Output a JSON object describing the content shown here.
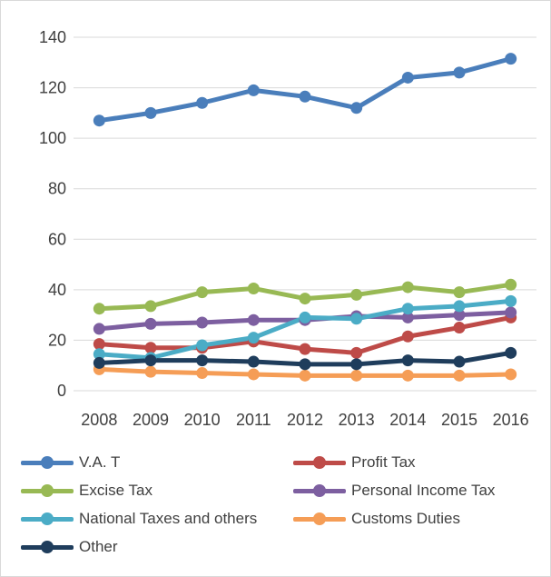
{
  "chart_data": {
    "type": "line",
    "categories": [
      "2008",
      "2009",
      "2010",
      "2011",
      "2012",
      "2013",
      "2014",
      "2015",
      "2016"
    ],
    "ylim": [
      0,
      140
    ],
    "yticks": [
      0,
      20,
      40,
      60,
      80,
      100,
      120,
      140
    ],
    "ytick_labels": [
      "0",
      "20",
      "40",
      "60",
      "80",
      "100",
      "120",
      "140"
    ],
    "grid": true,
    "legend_position": "bottom",
    "series": [
      {
        "name": "V.A. T",
        "color": "#4a7ebb",
        "values": [
          107,
          110,
          114,
          119,
          116.5,
          112,
          124,
          126,
          131.5
        ]
      },
      {
        "name": "Profit Tax",
        "color": "#be4b48",
        "values": [
          18.5,
          17,
          17,
          19.5,
          16.5,
          15,
          21.5,
          25,
          29
        ]
      },
      {
        "name": "Excise Tax",
        "color": "#98b954",
        "values": [
          32.5,
          33.5,
          39,
          40.5,
          36.5,
          38,
          41,
          39,
          42
        ]
      },
      {
        "name": "Personal Income Tax",
        "color": "#7d5fa0",
        "values": [
          24.5,
          26.5,
          27,
          28,
          28,
          29.5,
          29,
          30,
          31
        ]
      },
      {
        "name": "National Taxes and others",
        "color": "#4bacc6",
        "values": [
          14.5,
          13,
          18,
          21,
          29,
          28.5,
          32.5,
          33.5,
          35.5
        ]
      },
      {
        "name": "Customs Duties",
        "color": "#f59d56",
        "values": [
          8.5,
          7.5,
          7,
          6.5,
          6,
          6,
          6,
          6,
          6.5
        ]
      },
      {
        "name": "Other",
        "color": "#1f3d5c",
        "values": [
          11,
          12,
          12,
          11.5,
          10.5,
          10.5,
          12,
          11.5,
          15
        ]
      }
    ]
  },
  "legend": {
    "rows": [
      [
        {
          "label": "V.A. T",
          "color": "#4a7ebb"
        },
        {
          "label": "Profit Tax",
          "color": "#be4b48"
        }
      ],
      [
        {
          "label": "Excise Tax",
          "color": "#98b954"
        },
        {
          "label": "Personal Income Tax",
          "color": "#7d5fa0"
        }
      ],
      [
        {
          "label": "National Taxes and others",
          "color": "#4bacc6"
        },
        {
          "label": "Customs Duties",
          "color": "#f59d56"
        }
      ],
      [
        {
          "label": "Other",
          "color": "#1f3d5c"
        }
      ]
    ]
  }
}
